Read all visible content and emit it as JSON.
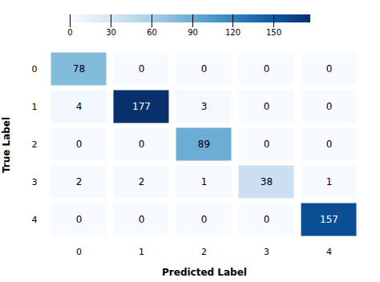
{
  "chart_data": {
    "type": "heatmap",
    "xlabel": "Predicted Label",
    "ylabel": "True Label",
    "categories": [
      "0",
      "1",
      "2",
      "3",
      "4"
    ],
    "matrix": [
      [
        78,
        0,
        0,
        0,
        0
      ],
      [
        4,
        177,
        3,
        0,
        0
      ],
      [
        0,
        0,
        89,
        0,
        0
      ],
      [
        2,
        2,
        1,
        38,
        1
      ],
      [
        0,
        0,
        0,
        0,
        157
      ]
    ],
    "color": "Blues",
    "color_range": [
      0,
      177
    ],
    "color_ticks": [
      0,
      30,
      60,
      90,
      120,
      150
    ],
    "data_labels": true
  }
}
